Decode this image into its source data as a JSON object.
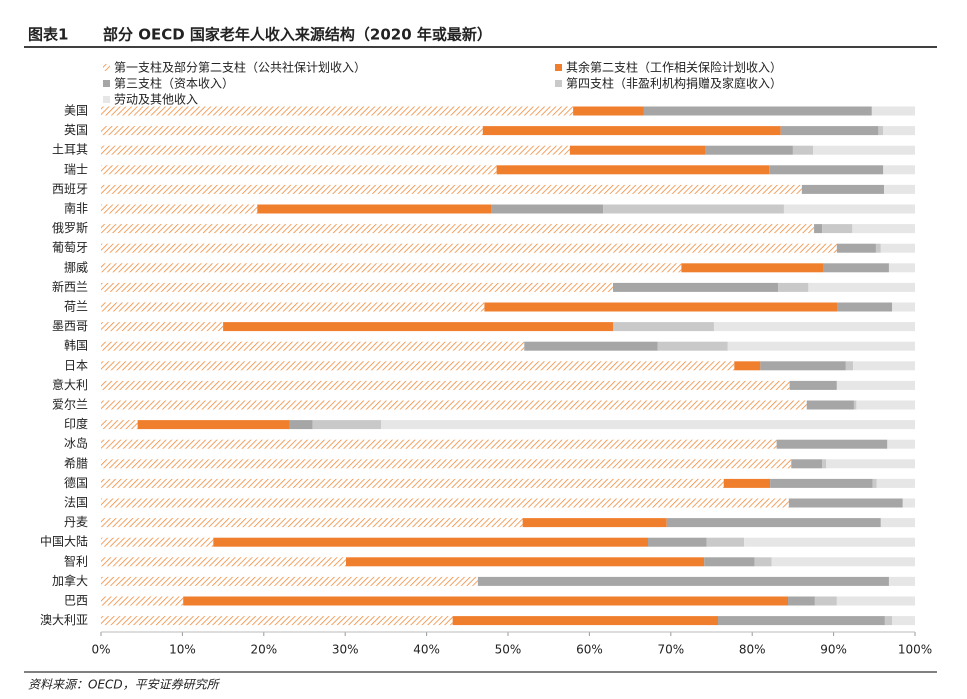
{
  "chart_data": {
    "type": "stacked-barh",
    "label": "图表1",
    "title": "部分 OECD 国家老年人收入来源结构（2020 年或最新）",
    "source": "资料来源：OECD，平安证券研究所",
    "categories": [
      "美国",
      "英国",
      "土耳其",
      "瑞士",
      "西班牙",
      "南非",
      "俄罗斯",
      "葡萄牙",
      "挪威",
      "新西兰",
      "荷兰",
      "墨西哥",
      "韩国",
      "日本",
      "意大利",
      "爱尔兰",
      "印度",
      "冰岛",
      "希腊",
      "德国",
      "法国",
      "丹麦",
      "中国大陆",
      "智利",
      "加拿大",
      "巴西",
      "澳大利亚"
    ],
    "series": [
      {
        "name": "第一支柱及部分第二支柱（公共社保计划收入）",
        "color": "#f08a3a",
        "hatch": true,
        "values": [
          58.0,
          46.9,
          57.6,
          48.6,
          86.1,
          19.2,
          87.6,
          90.4,
          71.3,
          62.9,
          47.1,
          15.0,
          52.0,
          77.8,
          84.6,
          86.7,
          4.5,
          83.0,
          84.8,
          76.5,
          84.5,
          51.8,
          13.8,
          30.1,
          46.3,
          10.1,
          43.2
        ]
      },
      {
        "name": "其余第二支柱（工作相关保险计划收入）",
        "color": "#f07f2d",
        "values": [
          8.7,
          36.6,
          16.7,
          33.5,
          0,
          28.8,
          0,
          0,
          17.4,
          0,
          43.4,
          47.9,
          0,
          3.2,
          0,
          0,
          18.7,
          0,
          0,
          5.7,
          0,
          17.7,
          53.4,
          44.0,
          0,
          74.3,
          32.6
        ]
      },
      {
        "name": "第三支柱（资本收入）",
        "color": "#a6a6a6",
        "values": [
          28.0,
          12.0,
          10.7,
          14.0,
          10.1,
          13.7,
          1.0,
          4.8,
          8.1,
          20.3,
          6.7,
          0,
          16.4,
          10.5,
          5.8,
          5.8,
          2.8,
          13.6,
          3.8,
          12.6,
          14.0,
          26.3,
          7.2,
          6.2,
          50.5,
          3.3,
          20.5
        ]
      },
      {
        "name": "第四支柱（非盈利机构捐赠及家庭收入）",
        "color": "#c9c9c9",
        "values": [
          0,
          0.6,
          2.5,
          0,
          0,
          22.2,
          3.7,
          0.6,
          0,
          3.7,
          0,
          12.4,
          8.6,
          0.9,
          0,
          0.3,
          8.4,
          0,
          0.5,
          0.5,
          0,
          0,
          4.6,
          2.1,
          0,
          2.7,
          0.9
        ]
      },
      {
        "name": "劳动及其他收入",
        "color": "#e6e6e6",
        "values": [
          5.3,
          3.9,
          12.5,
          3.9,
          3.8,
          16.1,
          7.7,
          4.2,
          3.2,
          13.1,
          2.8,
          24.7,
          23.0,
          7.6,
          9.6,
          7.2,
          65.6,
          3.4,
          10.9,
          4.7,
          1.5,
          4.2,
          21.0,
          17.6,
          3.2,
          9.6,
          2.8
        ]
      }
    ],
    "xlim": [
      0,
      100
    ],
    "xticks": [
      {
        "value": 0,
        "label": "0%"
      },
      {
        "value": 10,
        "label": "10%"
      },
      {
        "value": 20,
        "label": "20%"
      },
      {
        "value": 30,
        "label": "30%"
      },
      {
        "value": 40,
        "label": "40%"
      },
      {
        "value": 50,
        "label": "50%"
      },
      {
        "value": 60,
        "label": "60%"
      },
      {
        "value": 70,
        "label": "70%"
      },
      {
        "value": 80,
        "label": "80%"
      },
      {
        "value": 90,
        "label": "90%"
      },
      {
        "value": 100,
        "label": "100%"
      }
    ]
  }
}
